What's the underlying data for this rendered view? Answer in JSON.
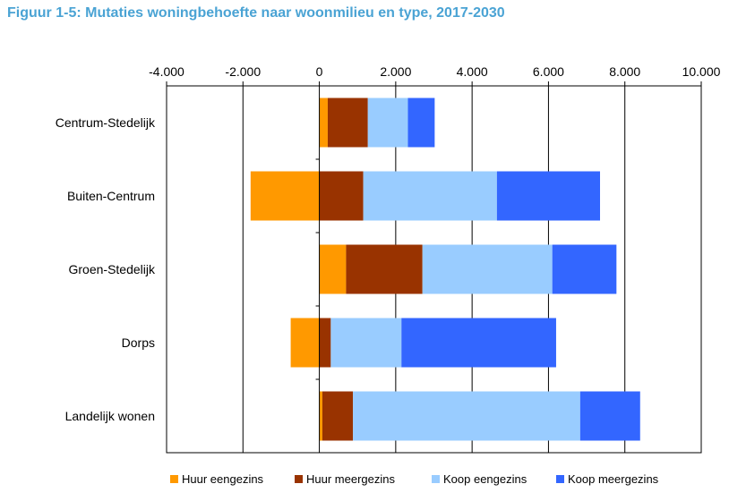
{
  "chart_data": {
    "type": "bar",
    "orientation": "horizontal",
    "stacked": true,
    "title": "Figuur 1-5: Mutaties woningbehoefte naar woonmilieu en type, 2017-2030",
    "xlabel": "",
    "ylabel": "",
    "xlim": [
      -4000,
      10000
    ],
    "xticks": [
      -4000,
      -2000,
      0,
      2000,
      4000,
      6000,
      8000,
      10000
    ],
    "xtick_labels": [
      "-4.000",
      "-2.000",
      "0",
      "2.000",
      "4.000",
      "6.000",
      "8.000",
      "10.000"
    ],
    "grid": "vertical-major",
    "legend_position": "bottom",
    "categories": [
      "Centrum-Stedelijk",
      "Buiten-Centrum",
      "Groen-Stedelijk",
      "Dorps",
      "Landelijk wonen"
    ],
    "series": [
      {
        "name": "Huur eengezins",
        "color": "#ff9900",
        "values": [
          220,
          -1800,
          700,
          -750,
          80
        ]
      },
      {
        "name": "Huur meergezins",
        "color": "#993300",
        "values": [
          1050,
          1150,
          2000,
          300,
          800
        ]
      },
      {
        "name": "Koop eengezins",
        "color": "#99ccff",
        "values": [
          1050,
          3500,
          3400,
          1850,
          5950
        ]
      },
      {
        "name": "Koop meergezins",
        "color": "#3366ff",
        "values": [
          700,
          2700,
          1680,
          4050,
          1570
        ]
      }
    ]
  }
}
